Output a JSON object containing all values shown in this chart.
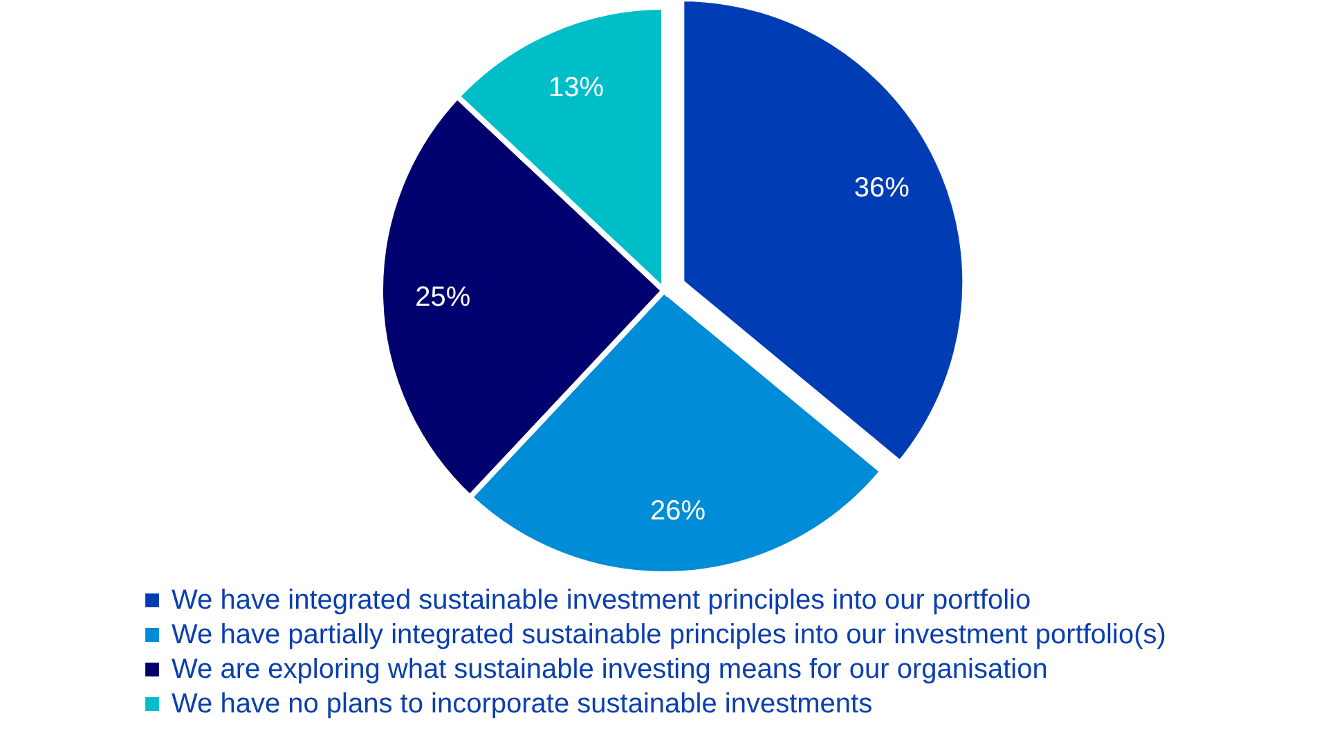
{
  "chart_data": {
    "type": "pie",
    "categories": [
      "We have integrated sustainable investment principles into our portfolio",
      "We have partially integrated sustainable principles into our investment portfolio(s)",
      "We are exploring what sustainable investing means for our organisation",
      "We have no plans to incorporate sustainable investments"
    ],
    "values": [
      36,
      26,
      25,
      13
    ],
    "colors": [
      "#003db5",
      "#008cd6",
      "#00006e",
      "#00bec8"
    ],
    "value_labels": [
      "36%",
      "26%",
      "25%",
      "13%"
    ],
    "legend": "bottom"
  }
}
